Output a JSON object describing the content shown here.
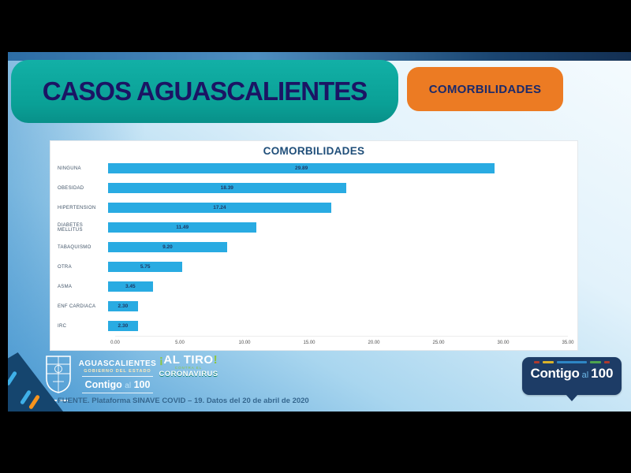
{
  "header": {
    "title": "CASOS AGUASCALIENTES",
    "tag": "COMORBILIDADES"
  },
  "chart_data": {
    "type": "bar",
    "orientation": "horizontal",
    "title": "COMORBILIDADES",
    "categories": [
      "NINGUNA",
      "OBESIDAD",
      "HIPERTENSION",
      "DIABETES MELLITUS",
      "TABAQUISMO",
      "OTRA",
      "ASMA",
      "ENF CARDIACA",
      "IRC"
    ],
    "values": [
      29.89,
      18.39,
      17.24,
      11.49,
      9.2,
      5.75,
      3.45,
      2.3,
      2.3
    ],
    "xlabel": "",
    "ylabel": "",
    "xlim": [
      0,
      35
    ],
    "xticks": [
      0,
      5,
      10,
      15,
      20,
      25,
      30,
      35
    ],
    "xtick_labels": [
      "0.00",
      "5.00",
      "10.00",
      "15.00",
      "20.00",
      "25.00",
      "30.00",
      "35.00"
    ],
    "grid": false,
    "legend": false,
    "bar_color": "#29abe2",
    "value_label_position": "inside-center"
  },
  "footer": {
    "gov_logo": {
      "state": "AGUASCALIENTES",
      "subtitle": "GOBIERNO DEL ESTADO",
      "slogan_contigo": "Contigo",
      "slogan_al": "al",
      "slogan_100": "100"
    },
    "campaign_logo": {
      "excl_open": "¡",
      "line1": "AL TIRO",
      "excl_close": "!",
      "mid": "CONTRA EL",
      "line2": "CORONAVIRUS"
    },
    "source": "FUENTE. Plataforma SINAVE COVID – 19. Datos del 20 de abril de 2020",
    "badge": {
      "contigo": "Contigo",
      "al": "al",
      "num": "100"
    }
  },
  "colors": {
    "teal_header": "#0aa096",
    "orange_tag": "#ec7b23",
    "header_text_navy": "#1b1464",
    "chart_title_navy": "#1f4e79",
    "bar_blue": "#29abe2",
    "badge_navy": "#1d3c66",
    "accent_green": "#8dc63f",
    "accent_orange": "#f7941d",
    "accent_cyan": "#3fb0e8"
  }
}
